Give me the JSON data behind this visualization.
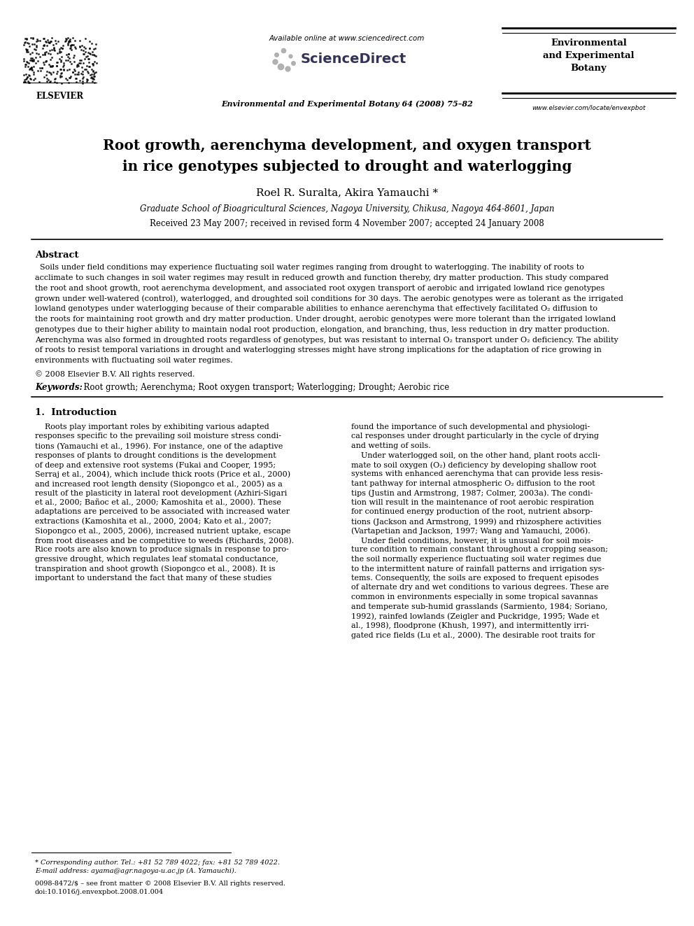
{
  "bg_color": "#ffffff",
  "page_width": 9.92,
  "page_height": 13.23,
  "header_available_online": "Available online at www.sciencedirect.com",
  "header_journal_name": "Environmental\nand Experimental\nBotany",
  "header_journal_citation": "Environmental and Experimental Botany 64 (2008) 75–82",
  "header_url": "www.elsevier.com/locate/envexpbot",
  "elsevier_label": "ELSEVIER",
  "article_title_line1": "Root growth, aerenchyma development, and oxygen transport",
  "article_title_line2": "in rice genotypes subjected to drought and waterlogging",
  "authors": "Roel R. Suralta, Akira Yamauchi *",
  "affiliation": "Graduate School of Bioagricultural Sciences, Nagoya University, Chikusa, Nagoya 464-8601, Japan",
  "received": "Received 23 May 2007; received in revised form 4 November 2007; accepted 24 January 2008",
  "abstract_heading": "Abstract",
  "copyright": "© 2008 Elsevier B.V. All rights reserved.",
  "keywords_label": "Keywords:",
  "keywords_text": "  Root growth; Aerenchyma; Root oxygen transport; Waterlogging; Drought; Aerobic rice",
  "section1_heading": "1.  Introduction",
  "footnote_star": "* Corresponding author. Tel.: +81 52 789 4022; fax: +81 52 789 4022.",
  "footnote_email": "E-mail address: ayama@agr.nagoya-u.ac.jp (A. Yamauchi).",
  "footer_issn": "0098-8472/$ – see front matter © 2008 Elsevier B.V. All rights reserved.",
  "footer_doi": "doi:10.1016/j.envexpbot.2008.01.004",
  "abstract_lines": [
    "  Soils under field conditions may experience fluctuating soil water regimes ranging from drought to waterlogging. The inability of roots to",
    "acclimate to such changes in soil water regimes may result in reduced growth and function thereby, dry matter production. This study compared",
    "the root and shoot growth, root aerenchyma development, and associated root oxygen transport of aerobic and irrigated lowland rice genotypes",
    "grown under well-watered (control), waterlogged, and droughted soil conditions for 30 days. The aerobic genotypes were as tolerant as the irrigated",
    "lowland genotypes under waterlogging because of their comparable abilities to enhance aerenchyma that effectively facilitated O₂ diffusion to",
    "the roots for maintaining root growth and dry matter production. Under drought, aerobic genotypes were more tolerant than the irrigated lowland",
    "genotypes due to their higher ability to maintain nodal root production, elongation, and branching, thus, less reduction in dry matter production.",
    "Aerenchyma was also formed in droughted roots regardless of genotypes, but was resistant to internal O₂ transport under O₂ deficiency. The ability",
    "of roots to resist temporal variations in drought and waterlogging stresses might have strong implications for the adaptation of rice growing in",
    "environments with fluctuating soil water regimes."
  ],
  "left_col_lines": [
    "    Roots play important roles by exhibiting various adapted",
    "responses specific to the prevailing soil moisture stress condi-",
    "tions (Yamauchi et al., 1996). For instance, one of the adaptive",
    "responses of plants to drought conditions is the development",
    "of deep and extensive root systems (Fukai and Cooper, 1995;",
    "Serraj et al., 2004), which include thick roots (Price et al., 2000)",
    "and increased root length density (Siopongco et al., 2005) as a",
    "result of the plasticity in lateral root development (Azhiri-Sigari",
    "et al., 2000; Bañoc et al., 2000; Kamoshita et al., 2000). These",
    "adaptations are perceived to be associated with increased water",
    "extractions (Kamoshita et al., 2000, 2004; Kato et al., 2007;",
    "Siopongco et al., 2005, 2006), increased nutrient uptake, escape",
    "from root diseases and be competitive to weeds (Richards, 2008).",
    "Rice roots are also known to produce signals in response to pro-",
    "gressive drought, which regulates leaf stomatal conductance,",
    "transpiration and shoot growth (Siopongco et al., 2008). It is",
    "important to understand the fact that many of these studies"
  ],
  "right_col_lines": [
    "found the importance of such developmental and physiologi-",
    "cal responses under drought particularly in the cycle of drying",
    "and wetting of soils.",
    "    Under waterlogged soil, on the other hand, plant roots accli-",
    "mate to soil oxygen (O₂) deficiency by developing shallow root",
    "systems with enhanced aerenchyma that can provide less resis-",
    "tant pathway for internal atmospheric O₂ diffusion to the root",
    "tips (Justin and Armstrong, 1987; Colmer, 2003a). The condi-",
    "tion will result in the maintenance of root aerobic respiration",
    "for continued energy production of the root, nutrient absorp-",
    "tions (Jackson and Armstrong, 1999) and rhizosphere activities",
    "(Vartapetian and Jackson, 1997; Wang and Yamauchi, 2006).",
    "    Under field conditions, however, it is unusual for soil mois-",
    "ture condition to remain constant throughout a cropping season;",
    "the soil normally experience fluctuating soil water regimes due",
    "to the intermittent nature of rainfall patterns and irrigation sys-",
    "tems. Consequently, the soils are exposed to frequent episodes",
    "of alternate dry and wet conditions to various degrees. These are",
    "common in environments especially in some tropical savannas",
    "and temperate sub-humid grasslands (Sarmiento, 1984; Soriano,",
    "1992), rainfed lowlands (Zeigler and Puckridge, 1995; Wade et",
    "al., 1998), floodprone (Khush, 1997), and intermittently irri-",
    "gated rice fields (Lu et al., 2000). The desirable root traits for"
  ]
}
